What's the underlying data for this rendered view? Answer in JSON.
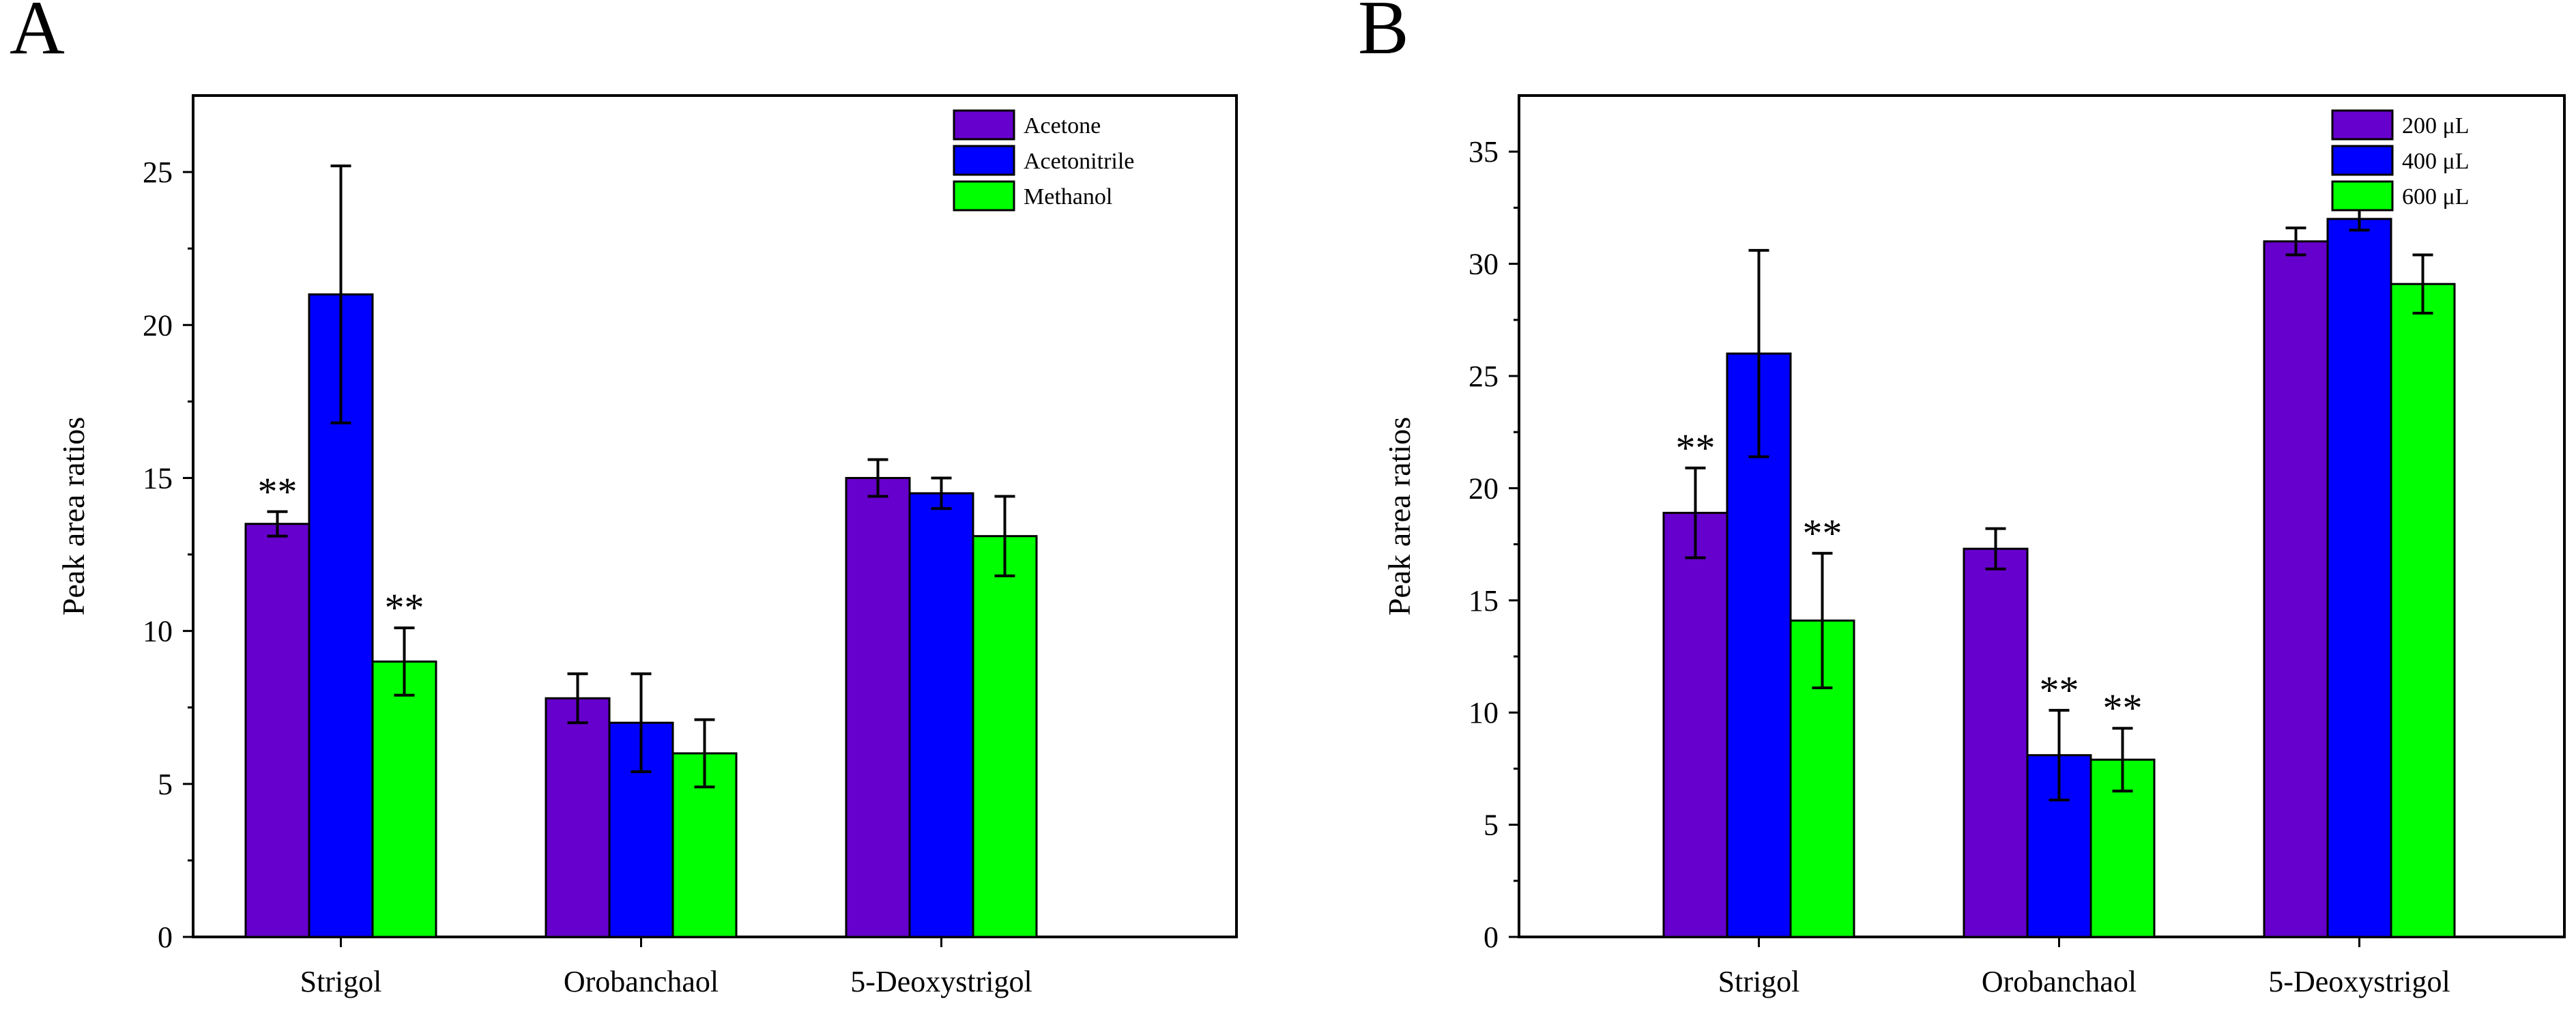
{
  "panels": [
    {
      "letter": "A",
      "chart_data": {
        "type": "bar",
        "categories": [
          "Strigol",
          "Orobanchaol",
          "5-Deoxystrigol"
        ],
        "series": [
          {
            "name": "Acetone",
            "color": "#6600cc",
            "values": [
              13.5,
              7.8,
              15.0
            ],
            "errors": [
              0.4,
              0.8,
              0.6
            ],
            "significance": [
              "**",
              "",
              ""
            ]
          },
          {
            "name": "Acetonitrile",
            "color": "#0000ff",
            "values": [
              21.0,
              7.0,
              14.5
            ],
            "errors": [
              4.2,
              1.6,
              0.5
            ],
            "significance": [
              "",
              "",
              ""
            ]
          },
          {
            "name": "Methanol",
            "color": "#00ff00",
            "values": [
              9.0,
              6.0,
              13.1
            ],
            "errors": [
              1.1,
              1.1,
              1.3
            ],
            "significance": [
              "**",
              "",
              ""
            ]
          }
        ],
        "ylabel": "Peak area ratios",
        "xlabel": "",
        "ylim": [
          0,
          27.5
        ],
        "yticks": [
          0,
          5,
          10,
          15,
          20,
          25
        ],
        "ytick_labels": [
          "0",
          "5",
          "10",
          "15",
          "20",
          "25"
        ],
        "legend_position": "top-right"
      }
    },
    {
      "letter": "B",
      "chart_data": {
        "type": "bar",
        "categories": [
          "Strigol",
          "Orobanchaol",
          "5-Deoxystrigol"
        ],
        "series": [
          {
            "name": "200 μL",
            "color": "#6600cc",
            "values": [
              18.9,
              17.3,
              31.0
            ],
            "errors": [
              2.0,
              0.9,
              0.6
            ],
            "significance": [
              "**",
              "",
              ""
            ]
          },
          {
            "name": "400 μL",
            "color": "#0000ff",
            "values": [
              26.0,
              8.1,
              32.0
            ],
            "errors": [
              4.6,
              2.0,
              0.5
            ],
            "significance": [
              "",
              "**",
              ""
            ]
          },
          {
            "name": "600 μL",
            "color": "#00ff00",
            "values": [
              14.1,
              7.9,
              29.1
            ],
            "errors": [
              3.0,
              1.4,
              1.3
            ],
            "significance": [
              "**",
              "**",
              ""
            ]
          }
        ],
        "ylabel": "Peak area ratios",
        "xlabel": "",
        "ylim": [
          0,
          37.5
        ],
        "yticks": [
          0,
          5,
          10,
          15,
          20,
          25,
          30,
          35
        ],
        "ytick_labels": [
          "0",
          "5",
          "10",
          "15",
          "20",
          "25",
          "30",
          "35"
        ],
        "legend_position": "top-right"
      }
    }
  ]
}
